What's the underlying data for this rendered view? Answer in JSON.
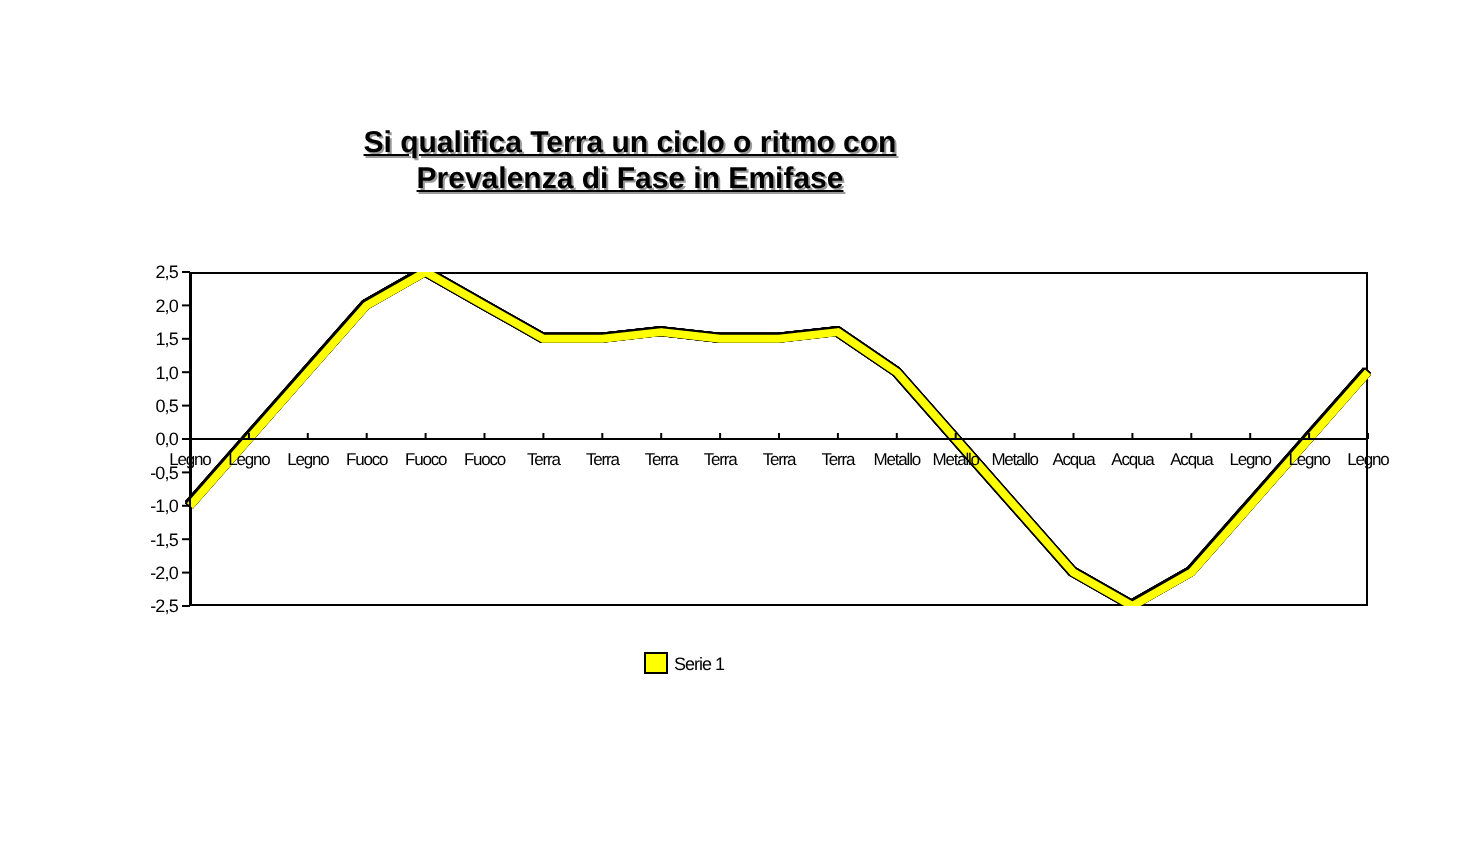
{
  "chart_data": {
    "type": "line",
    "title": "Si qualifica Terra un ciclo o ritmo con Prevalenza di Fase in Emifase",
    "categories": [
      "Legno",
      "Legno",
      "Legno",
      "Fuoco",
      "Fuoco",
      "Fuoco",
      "Terra",
      "Terra",
      "Terra",
      "Terra",
      "Terra",
      "Terra",
      "Metallo",
      "Metallo",
      "Metallo",
      "Acqua",
      "Acqua",
      "Acqua",
      "Legno",
      "Legno",
      "Legno"
    ],
    "series": [
      {
        "name": "Serie 1",
        "color": "#ffff00",
        "values": [
          -1,
          0,
          1,
          2,
          2.5,
          2,
          1.5,
          1.5,
          1.6,
          1.5,
          1.5,
          1.6,
          1,
          0,
          -1,
          -2,
          -2.5,
          -2,
          -1,
          0,
          1
        ]
      }
    ],
    "ylim": [
      -2.5,
      2.5
    ],
    "yticks": [
      {
        "value": 2.5,
        "label": "2,5"
      },
      {
        "value": 2,
        "label": "2,0"
      },
      {
        "value": 1.5,
        "label": "1,5"
      },
      {
        "value": 1,
        "label": "1,0"
      },
      {
        "value": 0.5,
        "label": "0,5"
      },
      {
        "value": 0,
        "label": "0,0"
      },
      {
        "value": -0.5,
        "label": "-0,5"
      },
      {
        "value": -1,
        "label": "-1,0"
      },
      {
        "value": -1.5,
        "label": "-1,5"
      },
      {
        "value": -2,
        "label": "-2,0"
      },
      {
        "value": -2.5,
        "label": "-2,5"
      }
    ],
    "legend": "bottom",
    "marker": "none"
  }
}
